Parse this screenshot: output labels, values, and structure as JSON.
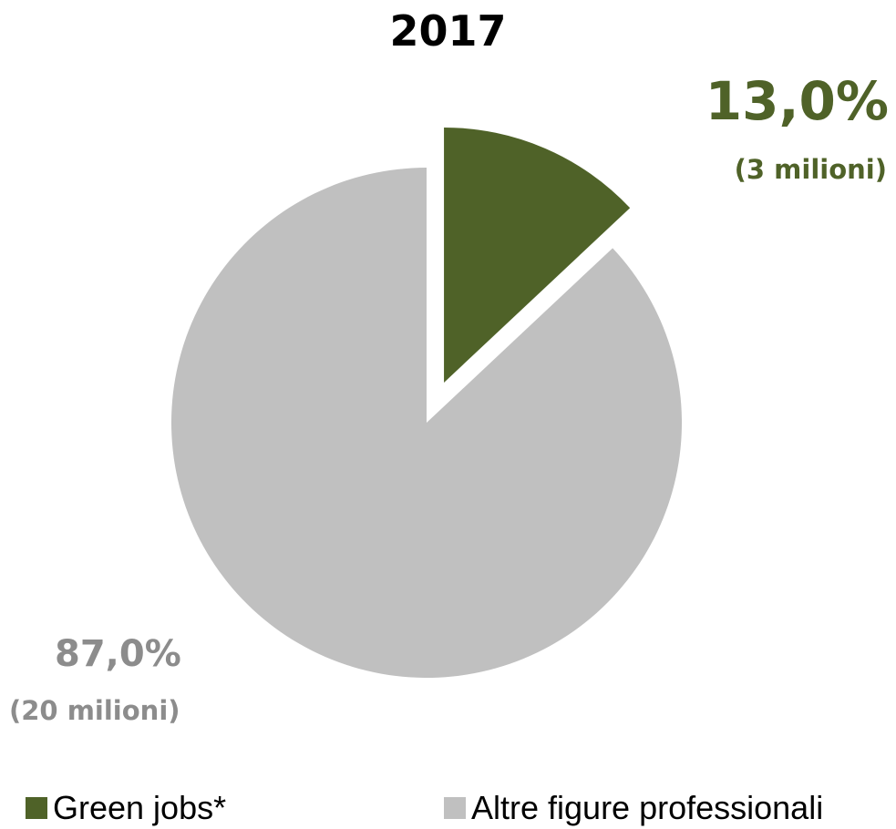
{
  "chart_data": {
    "type": "pie",
    "title": "2017",
    "series": [
      {
        "name": "Green jobs*",
        "value": 13.0,
        "value_label": "13,0%",
        "sub_label": "(3 milioni)",
        "color": "#4f6228",
        "exploded": true
      },
      {
        "name": "Altre figure professionali",
        "value": 87.0,
        "value_label": "87,0%",
        "sub_label": "(20 milioni)",
        "color": "#c0c0c0",
        "exploded": false
      }
    ],
    "start_angle": "12 o'clock",
    "direction": "clockwise",
    "legend_position": "bottom"
  },
  "label_colors": {
    "green": "#4f6228",
    "gray": "#8c8c8c"
  }
}
